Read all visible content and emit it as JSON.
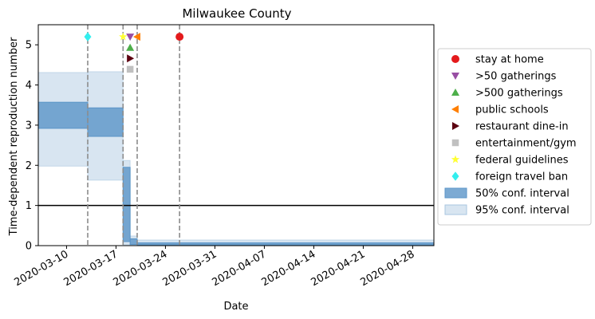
{
  "chart_data": {
    "type": "area",
    "title": "Milwaukee County",
    "xlabel": "Date",
    "ylabel": "Time-dependent reproduction number",
    "x_range": [
      "2020-03-06",
      "2020-05-01"
    ],
    "ylim": [
      0,
      5.5
    ],
    "y_ticks": [
      0,
      1,
      2,
      3,
      4,
      5
    ],
    "x_ticks": [
      "2020-03-10",
      "2020-03-17",
      "2020-03-24",
      "2020-03-31",
      "2020-04-07",
      "2020-04-14",
      "2020-04-21",
      "2020-04-28"
    ],
    "grid": false,
    "legend_placement": "outside right",
    "reference_line": {
      "y": 1,
      "color": "#000000"
    },
    "ci_bands": [
      {
        "name": "50% conf. interval",
        "color": "#5b95c8",
        "segments": [
          {
            "start": "2020-03-06",
            "end": "2020-03-13",
            "low": 2.92,
            "high": 3.57
          },
          {
            "start": "2020-03-13",
            "end": "2020-03-18",
            "low": 2.72,
            "high": 3.43
          },
          {
            "start": "2020-03-18",
            "end": "2020-03-19",
            "low": 0.1,
            "high": 1.95
          },
          {
            "start": "2020-03-19",
            "end": "2020-03-20",
            "low": 0.03,
            "high": 0.17
          },
          {
            "start": "2020-03-20",
            "end": "2020-05-01",
            "low": 0.02,
            "high": 0.07
          }
        ]
      },
      {
        "name": "95% conf. interval",
        "color": "#a9c6e0",
        "segments": [
          {
            "start": "2020-03-06",
            "end": "2020-03-13",
            "low": 1.98,
            "high": 4.31
          },
          {
            "start": "2020-03-13",
            "end": "2020-03-18",
            "low": 1.63,
            "high": 4.33
          },
          {
            "start": "2020-03-18",
            "end": "2020-03-19",
            "low": 0.02,
            "high": 2.12
          },
          {
            "start": "2020-03-19",
            "end": "2020-03-20",
            "low": 0.01,
            "high": 0.24
          },
          {
            "start": "2020-03-20",
            "end": "2020-05-01",
            "low": 0.0,
            "high": 0.14
          }
        ]
      }
    ],
    "event_lines": [
      "2020-03-13",
      "2020-03-18",
      "2020-03-20",
      "2020-03-26"
    ],
    "interventions": [
      {
        "name": "stay at home",
        "date": "2020-03-26",
        "y": 5.2,
        "marker": "circle",
        "color": "#e41a1c"
      },
      {
        "name": ">50 gatherings",
        "date": "2020-03-19",
        "y": 5.2,
        "marker": "triangle-down",
        "color": "#984ea3"
      },
      {
        "name": ">500 gatherings",
        "date": "2020-03-19",
        "y": 4.93,
        "marker": "triangle-up",
        "color": "#4daf4a"
      },
      {
        "name": "public schools",
        "date": "2020-03-20",
        "y": 5.2,
        "marker": "triangle-left",
        "color": "#ff7f00"
      },
      {
        "name": "restaurant dine-in",
        "date": "2020-03-19",
        "y": 4.66,
        "marker": "triangle-right",
        "color": "#5c0010"
      },
      {
        "name": "entertainment/gym",
        "date": "2020-03-19",
        "y": 4.39,
        "marker": "square",
        "color": "#c0c0c0"
      },
      {
        "name": "federal guidelines",
        "date": "2020-03-18",
        "y": 5.2,
        "marker": "star",
        "color": "#ffff33"
      },
      {
        "name": "foreign travel ban",
        "date": "2020-03-13",
        "y": 5.2,
        "marker": "diamond",
        "color": "#33eeee"
      }
    ]
  }
}
